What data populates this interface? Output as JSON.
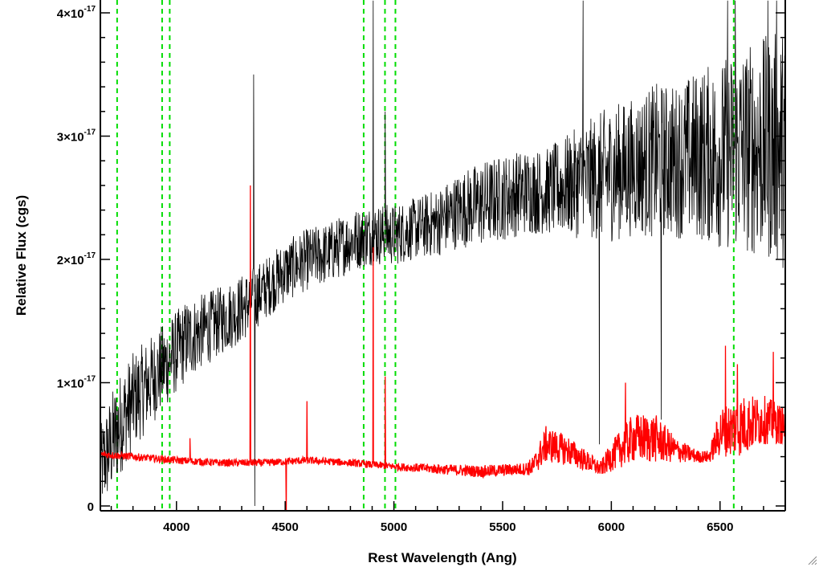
{
  "chart_data": {
    "type": "line",
    "title": "",
    "xlabel": "Rest Wavelength (Ang)",
    "ylabel": "Relative Flux (cgs)",
    "xlim": [
      3650,
      6800
    ],
    "ylim": [
      0,
      4.1e-17
    ],
    "x_ticks": [
      {
        "value": 4000,
        "label": "4000"
      },
      {
        "value": 4500,
        "label": "4500"
      },
      {
        "value": 5000,
        "label": "5000"
      },
      {
        "value": 5500,
        "label": "5500"
      },
      {
        "value": 6000,
        "label": "6000"
      },
      {
        "value": 6500,
        "label": "6500"
      }
    ],
    "y_ticks": [
      {
        "value": 0,
        "mantissa": "0",
        "exponent": ""
      },
      {
        "value": 1e-17,
        "mantissa": "1×10",
        "exponent": "-17"
      },
      {
        "value": 2e-17,
        "mantissa": "2×10",
        "exponent": "-17"
      },
      {
        "value": 3e-17,
        "mantissa": "3×10",
        "exponent": "-17"
      },
      {
        "value": 4e-17,
        "mantissa": "4×10",
        "exponent": "-17"
      }
    ],
    "grid": false,
    "reference_lines": [
      {
        "x": 3727,
        "color": "#00dd00",
        "style": "dashed"
      },
      {
        "x": 3934,
        "color": "#00dd00",
        "style": "dashed"
      },
      {
        "x": 3969,
        "color": "#00dd00",
        "style": "dashed"
      },
      {
        "x": 4861,
        "color": "#00dd00",
        "style": "dashed"
      },
      {
        "x": 4959,
        "color": "#00dd00",
        "style": "dashed"
      },
      {
        "x": 5007,
        "color": "#00dd00",
        "style": "dashed"
      },
      {
        "x": 6563,
        "color": "#00dd00",
        "style": "dashed"
      }
    ],
    "series": [
      {
        "color": "#000000",
        "style": "noisy-line",
        "x": [
          3650,
          3700,
          3750,
          3800,
          3850,
          3900,
          3950,
          4000,
          4050,
          4100,
          4200,
          4300,
          4400,
          4500,
          4600,
          4700,
          4800,
          4900,
          5000,
          5100,
          5200,
          5300,
          5400,
          5500,
          5600,
          5700,
          5800,
          5900,
          6000,
          6100,
          6200,
          6300,
          6400,
          6500,
          6600,
          6700,
          6800
        ],
        "y": [
          3e-18,
          5e-18,
          7e-18,
          8.5e-18,
          9.5e-18,
          1.05e-17,
          1.15e-17,
          1.25e-17,
          1.35e-17,
          1.4e-17,
          1.5e-17,
          1.6e-17,
          1.75e-17,
          1.9e-17,
          2e-17,
          2.05e-17,
          2.15e-17,
          2.2e-17,
          2.2e-17,
          2.25e-17,
          2.3e-17,
          2.4e-17,
          2.45e-17,
          2.5e-17,
          2.55e-17,
          2.55e-17,
          2.6e-17,
          2.65e-17,
          2.7e-17,
          2.75e-17,
          2.8e-17,
          2.8e-17,
          2.85e-17,
          2.85e-17,
          2.9e-17,
          2.9e-17,
          2.9e-17
        ],
        "noise": [
          2.5e-18,
          3e-18,
          3e-18,
          2.8e-18,
          2.7e-18,
          2.6e-18,
          2.5e-18,
          2.4e-18,
          2.4e-18,
          2.2e-18,
          2e-18,
          2e-18,
          1.8e-18,
          1.8e-18,
          1.8e-18,
          1.8e-18,
          1.8e-18,
          1.8e-18,
          1.8e-18,
          1.8e-18,
          2e-18,
          2.2e-18,
          2.5e-18,
          2.5e-18,
          2.5e-18,
          2.5e-18,
          3e-18,
          3.5e-18,
          4e-18,
          4e-18,
          4.5e-18,
          4.5e-18,
          5e-18,
          5.5e-18,
          6e-18,
          6.5e-18,
          7e-18
        ],
        "spikes": [
          {
            "x": 4355,
            "y": 3.5e-17
          },
          {
            "x": 4360,
            "y": 0.0
          },
          {
            "x": 4905,
            "y": 4.1e-17
          },
          {
            "x": 4960,
            "y": 3.2e-17
          },
          {
            "x": 5870,
            "y": 4.1e-17
          },
          {
            "x": 5945,
            "y": 5e-18
          },
          {
            "x": 6230,
            "y": 7e-18
          },
          {
            "x": 6535,
            "y": 4.1e-17
          },
          {
            "x": 6570,
            "y": 4.1e-17
          },
          {
            "x": 6720,
            "y": 4.1e-17
          },
          {
            "x": 6760,
            "y": 4.1e-17
          }
        ]
      },
      {
        "color": "#ff0000",
        "style": "noisy-line",
        "x": [
          3650,
          3800,
          4000,
          4200,
          4400,
          4600,
          4800,
          5000,
          5200,
          5400,
          5600,
          5640,
          5700,
          5800,
          5900,
          5950,
          6000,
          6100,
          6200,
          6300,
          6400,
          6450,
          6500,
          6600,
          6700,
          6800
        ],
        "y": [
          4.2e-18,
          4e-18,
          3.7e-18,
          3.5e-18,
          3.5e-18,
          3.7e-18,
          3.5e-18,
          3.2e-18,
          3e-18,
          2.8e-18,
          3e-18,
          3.2e-18,
          5e-18,
          4.5e-18,
          3.5e-18,
          3e-18,
          4e-18,
          5.5e-18,
          5.5e-18,
          4.5e-18,
          4e-18,
          4e-18,
          6e-18,
          6.5e-18,
          7e-18,
          6.5e-18
        ],
        "noise": [
          3e-19,
          3e-19,
          3e-19,
          3e-19,
          3e-19,
          3e-19,
          3e-19,
          3e-19,
          4e-19,
          5e-19,
          5e-19,
          8e-19,
          1.5e-18,
          1.2e-18,
          8e-19,
          6e-19,
          1.2e-18,
          2e-18,
          2e-18,
          1e-18,
          5e-19,
          5e-19,
          2e-18,
          2.5e-18,
          2e-18,
          1.5e-18
        ],
        "spikes": [
          {
            "x": 4062,
            "y": 5.5e-18
          },
          {
            "x": 4340,
            "y": 2.6e-17
          },
          {
            "x": 4505,
            "y": -1e-18
          },
          {
            "x": 4600,
            "y": 8.5e-18
          },
          {
            "x": 4905,
            "y": 2.1e-17
          },
          {
            "x": 4960,
            "y": 1.05e-17
          },
          {
            "x": 6065,
            "y": 1e-17
          },
          {
            "x": 6525,
            "y": 1.3e-17
          },
          {
            "x": 6580,
            "y": 1.15e-17
          },
          {
            "x": 6745,
            "y": 1.25e-17
          }
        ]
      }
    ]
  }
}
